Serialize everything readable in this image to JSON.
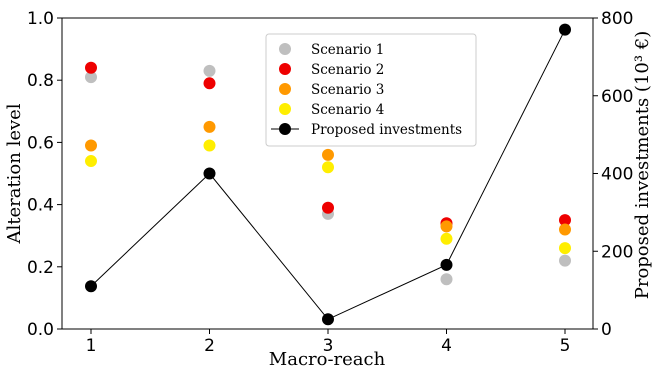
{
  "chart_data": {
    "type": "scatter",
    "title": "",
    "xlabel": "Macro-reach",
    "ylabel_left": "Alteration level",
    "ylabel_right": "Proposed investments (10³ €)",
    "categories": [
      "1",
      "2",
      "3",
      "4",
      "5"
    ],
    "ylim_left": [
      0,
      1
    ],
    "ylim_right": [
      0,
      800
    ],
    "yticks_left": [
      "0.0",
      "0.2",
      "0.4",
      "0.6",
      "0.8",
      "1.0"
    ],
    "yticks_right": [
      "0",
      "200",
      "400",
      "600",
      "800"
    ],
    "grid": false,
    "legend_position": "top-center",
    "series": [
      {
        "name": "Scenario 1",
        "color": "#bfbfbf",
        "axis": "left",
        "values": [
          0.81,
          0.83,
          0.37,
          0.16,
          0.22
        ]
      },
      {
        "name": "Scenario 2",
        "color": "#ee0000",
        "axis": "left",
        "values": [
          0.84,
          0.79,
          0.39,
          0.34,
          0.35
        ]
      },
      {
        "name": "Scenario 3",
        "color": "#ff9900",
        "axis": "left",
        "values": [
          0.59,
          0.65,
          0.56,
          0.33,
          0.32
        ]
      },
      {
        "name": "Scenario 4",
        "color": "#ffee00",
        "axis": "left",
        "values": [
          0.54,
          0.59,
          0.52,
          0.29,
          0.26
        ]
      },
      {
        "name": "Proposed investments",
        "color": "#000000",
        "axis": "right",
        "line": true,
        "values": [
          110,
          400,
          25,
          165,
          770
        ]
      }
    ]
  }
}
